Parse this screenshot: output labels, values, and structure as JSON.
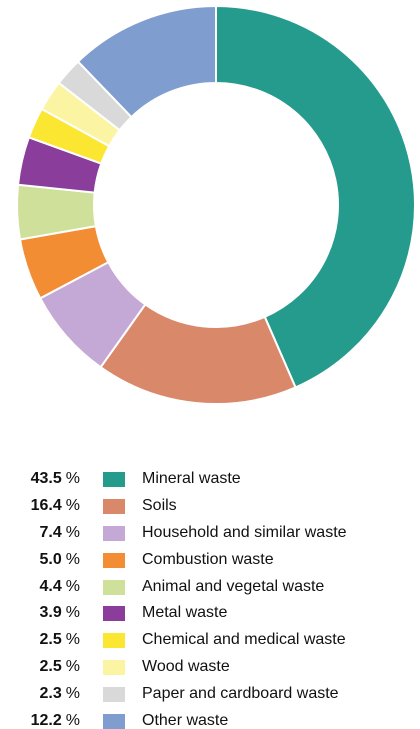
{
  "chart_data": {
    "type": "pie",
    "donut": true,
    "unit": "%",
    "slices": [
      {
        "label": "Mineral waste",
        "value": 43.5,
        "value_text": "43.5",
        "color": "#249b8c"
      },
      {
        "label": "Soils",
        "value": 16.4,
        "value_text": "16.4",
        "color": "#d9896a"
      },
      {
        "label": "Household and similar waste",
        "value": 7.4,
        "value_text": "7.4",
        "color": "#c4a8d6"
      },
      {
        "label": "Combustion waste",
        "value": 5.0,
        "value_text": "5.0",
        "color": "#f28d34"
      },
      {
        "label": "Animal and vegetal waste",
        "value": 4.4,
        "value_text": "4.4",
        "color": "#cfe09a"
      },
      {
        "label": "Metal waste",
        "value": 3.9,
        "value_text": "3.9",
        "color": "#8a3d9b"
      },
      {
        "label": "Chemical and medical waste",
        "value": 2.5,
        "value_text": "2.5",
        "color": "#fbe631"
      },
      {
        "label": "Wood waste",
        "value": 2.5,
        "value_text": "2.5",
        "color": "#fbf5a3"
      },
      {
        "label": "Paper and cardboard waste",
        "value": 2.3,
        "value_text": "2.3",
        "color": "#d9d9d9"
      },
      {
        "label": "Other waste",
        "value": 12.2,
        "value_text": "12.2",
        "color": "#7f9dce"
      }
    ],
    "legend_placement": "bottom"
  }
}
